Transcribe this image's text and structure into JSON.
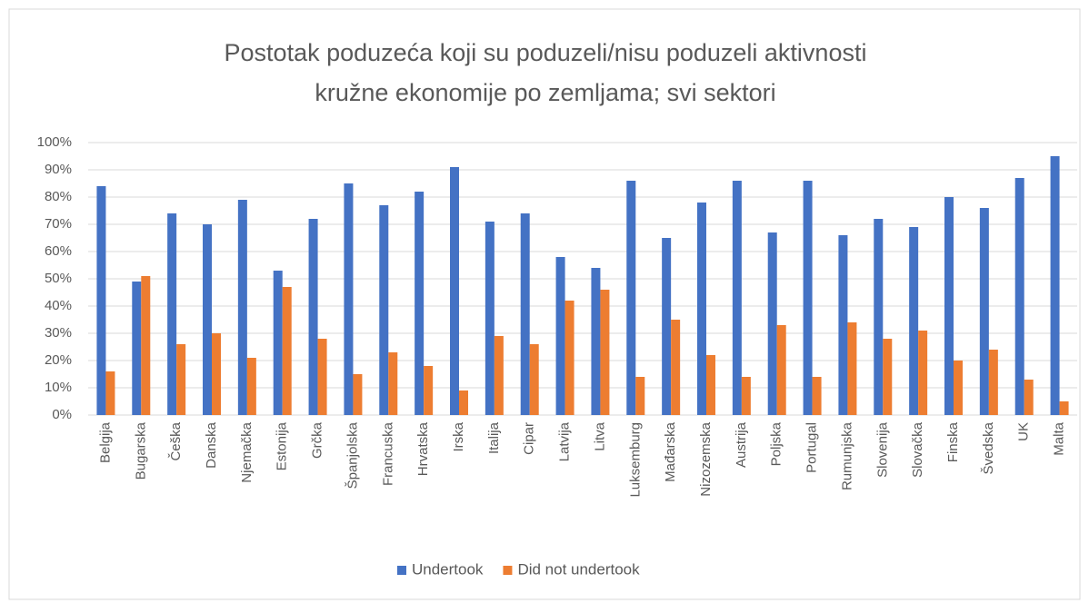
{
  "chart_data": {
    "type": "bar",
    "title": [
      "Postotak poduzeća koji su poduzeli/nisu poduzeli aktivnosti",
      "kružne ekonomije po zemljama; svi sektori"
    ],
    "categories": [
      "Belgija",
      "Bugarska",
      "Češka",
      "Danska",
      "Njemačka",
      "Estonija",
      "Grčka",
      "Španjolska",
      "Francuska",
      "Hrvatska",
      "Irska",
      "Italija",
      "Cipar",
      "Latvija",
      "Litva",
      "Luksemburg",
      "Mađarska",
      "Nizozemska",
      "Austrija",
      "Poljska",
      "Portugal",
      "Rumunjska",
      "Slovenija",
      "Slovačka",
      "Finska",
      "Švedska",
      "UK",
      "Malta"
    ],
    "series": [
      {
        "name": "Undertook",
        "color": "#4472c4",
        "values": [
          84,
          49,
          74,
          70,
          79,
          53,
          72,
          85,
          77,
          82,
          91,
          71,
          74,
          58,
          54,
          86,
          65,
          78,
          86,
          67,
          86,
          66,
          72,
          69,
          80,
          76,
          87,
          95
        ]
      },
      {
        "name": "Did not undertook",
        "color": "#ed7d31",
        "values": [
          16,
          51,
          26,
          30,
          21,
          47,
          28,
          15,
          23,
          18,
          9,
          29,
          26,
          42,
          46,
          14,
          35,
          22,
          14,
          33,
          14,
          34,
          28,
          31,
          20,
          24,
          13,
          5
        ]
      }
    ],
    "ylim": [
      0,
      100
    ],
    "yticks": [
      {
        "value": 0,
        "label": "0%"
      },
      {
        "value": 10,
        "label": "10%"
      },
      {
        "value": 20,
        "label": "20%"
      },
      {
        "value": 30,
        "label": "30%"
      },
      {
        "value": 40,
        "label": "40%"
      },
      {
        "value": 50,
        "label": "50%"
      },
      {
        "value": 60,
        "label": "60%"
      },
      {
        "value": 70,
        "label": "70%"
      },
      {
        "value": 80,
        "label": "80%"
      },
      {
        "value": 90,
        "label": "90%"
      },
      {
        "value": 100,
        "label": "100%"
      }
    ],
    "grid": true,
    "legend": "bottom"
  }
}
